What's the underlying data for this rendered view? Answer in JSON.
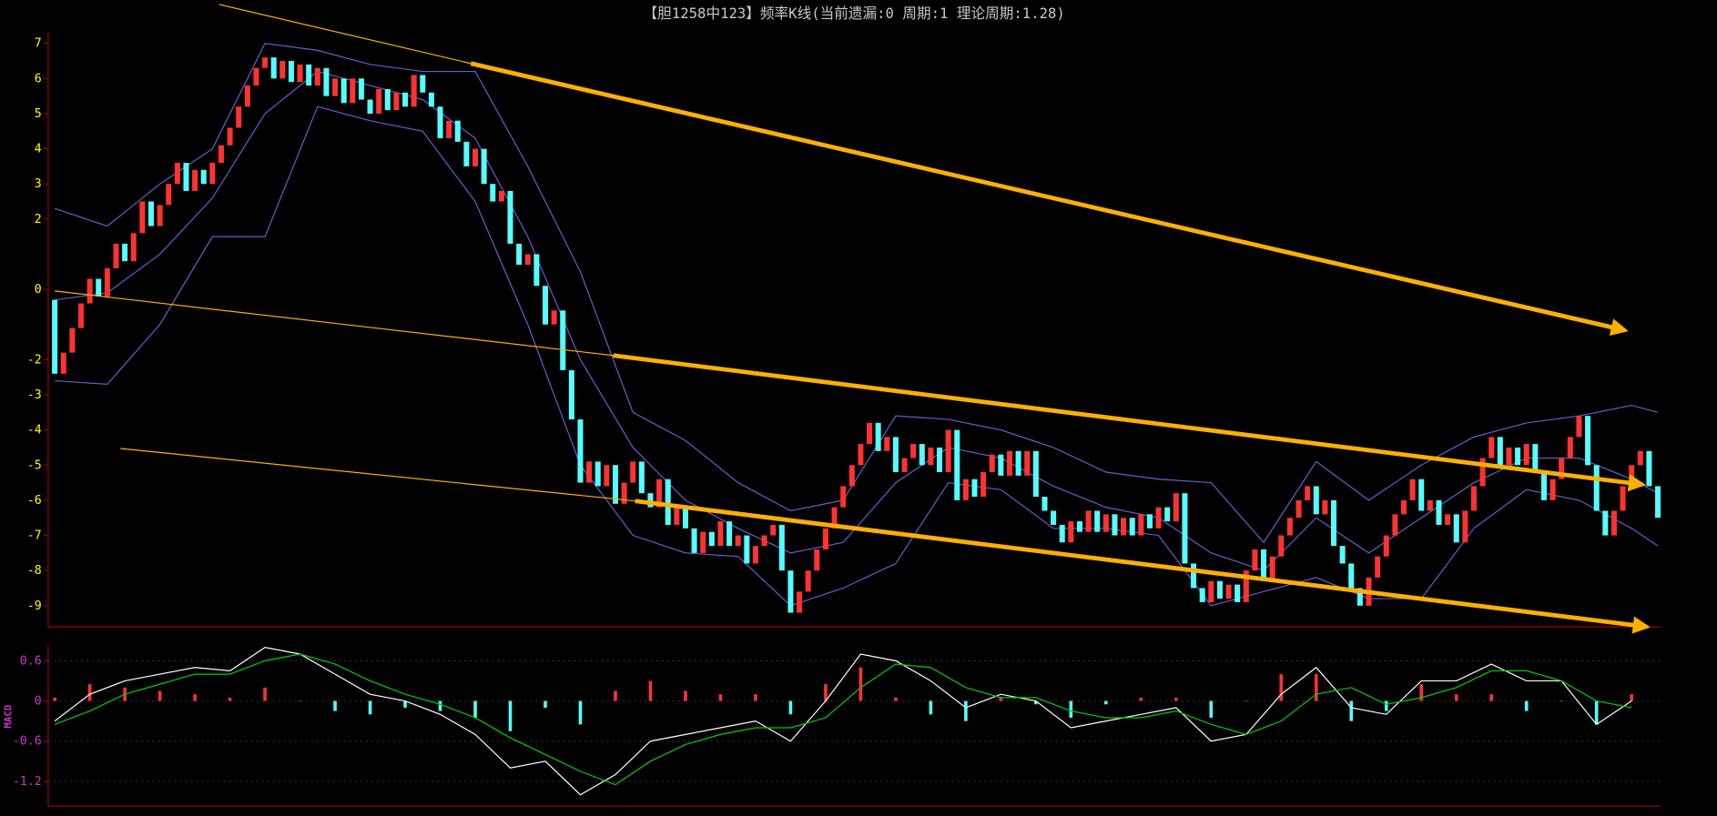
{
  "chart_data": [
    {
      "type": "candlestick",
      "title": "【胆1258中123】频率K线(当前遗漏:0 周期:1 理论周期:1.28)",
      "first_open": -0.3,
      "close": [
        -2.4,
        -1.8,
        -1.1,
        -0.4,
        0.3,
        -0.2,
        0.6,
        1.3,
        0.8,
        1.6,
        2.5,
        1.8,
        2.4,
        3.0,
        3.6,
        2.8,
        3.4,
        3.0,
        3.6,
        4.1,
        4.6,
        5.2,
        5.8,
        6.3,
        6.6,
        6.0,
        6.5,
        5.9,
        6.4,
        5.8,
        6.3,
        5.5,
        6.0,
        5.3,
        6.0,
        5.4,
        5.0,
        5.7,
        5.1,
        5.6,
        5.2,
        6.1,
        5.6,
        5.2,
        4.3,
        4.8,
        4.2,
        3.5,
        4.0,
        3.0,
        2.5,
        2.8,
        1.3,
        0.7,
        1.0,
        0.1,
        -1.0,
        -0.6,
        -2.3,
        -3.7,
        -5.5,
        -4.9,
        -5.6,
        -5.0,
        -6.1,
        -5.5,
        -4.9,
        -5.8,
        -6.2,
        -5.4,
        -6.7,
        -6.2,
        -6.8,
        -7.5,
        -6.9,
        -7.3,
        -6.6,
        -7.3,
        -7.0,
        -7.8,
        -7.3,
        -7.0,
        -6.7,
        -8.0,
        -9.2,
        -8.6,
        -8.0,
        -7.4,
        -6.8,
        -6.2,
        -5.6,
        -5.0,
        -4.4,
        -3.8,
        -4.6,
        -4.2,
        -5.2,
        -4.8,
        -4.4,
        -5.0,
        -4.5,
        -5.2,
        -4.0,
        -6.0,
        -5.4,
        -5.9,
        -5.2,
        -4.7,
        -5.3,
        -4.6,
        -5.3,
        -4.6,
        -5.9,
        -6.3,
        -6.7,
        -7.2,
        -6.6,
        -6.9,
        -6.3,
        -6.9,
        -6.4,
        -7.0,
        -6.5,
        -7.0,
        -6.4,
        -6.8,
        -6.2,
        -6.6,
        -5.8,
        -7.8,
        -8.5,
        -8.9,
        -8.3,
        -8.8,
        -8.4,
        -8.9,
        -8.0,
        -7.4,
        -8.3,
        -7.6,
        -7.0,
        -6.5,
        -6.0,
        -5.6,
        -6.4,
        -6.0,
        -7.3,
        -7.8,
        -8.5,
        -9.0,
        -8.2,
        -7.6,
        -7.0,
        -6.4,
        -6.0,
        -5.4,
        -6.3,
        -6.0,
        -6.7,
        -6.4,
        -7.2,
        -6.3,
        -5.6,
        -4.8,
        -4.2,
        -5.0,
        -4.5,
        -5.0,
        -4.4,
        -5.2,
        -6.0,
        -5.4,
        -4.8,
        -4.2,
        -3.6,
        -5.0,
        -6.3,
        -7.0,
        -6.3,
        -5.6,
        -5.0,
        -4.6,
        -5.6,
        -6.5
      ],
      "up_color": "#ff3232",
      "down_color": "#54ffff",
      "bands": {
        "color": "#6a5acd",
        "x": [
          0,
          6,
          12,
          18,
          24,
          30,
          36,
          42,
          48,
          54,
          60,
          66,
          72,
          78,
          84,
          90,
          96,
          102,
          108,
          114,
          120,
          126,
          132,
          138,
          144,
          150,
          156,
          162,
          168,
          174,
          180,
          183
        ],
        "upper": [
          2.3,
          1.8,
          3.0,
          4.0,
          7.0,
          6.8,
          6.4,
          6.2,
          6.2,
          3.5,
          0.5,
          -3.5,
          -4.3,
          -5.5,
          -6.3,
          -6.0,
          -3.6,
          -3.7,
          -4.0,
          -4.5,
          -5.2,
          -5.4,
          -5.5,
          -7.2,
          -4.9,
          -6.0,
          -5.0,
          -4.2,
          -3.8,
          -3.6,
          -3.3,
          -3.5
        ],
        "middle": [
          -0.3,
          -0.1,
          1.0,
          2.6,
          5.0,
          6.2,
          5.8,
          5.4,
          4.3,
          1.5,
          -2.0,
          -4.5,
          -6.0,
          -6.8,
          -7.5,
          -7.2,
          -5.5,
          -4.5,
          -4.8,
          -5.6,
          -6.2,
          -6.5,
          -7.5,
          -8.0,
          -6.5,
          -7.5,
          -6.5,
          -5.5,
          -4.8,
          -4.8,
          -5.4,
          -5.8
        ],
        "lower": [
          -2.6,
          -2.7,
          -1.0,
          1.5,
          1.5,
          5.2,
          4.8,
          4.5,
          2.5,
          -1.0,
          -5.0,
          -7.0,
          -7.5,
          -7.6,
          -9.0,
          -8.5,
          -7.8,
          -5.5,
          -5.7,
          -6.8,
          -6.8,
          -7.0,
          -9.0,
          -8.6,
          -8.2,
          -8.8,
          -8.8,
          -6.8,
          -5.7,
          -6.0,
          -6.8,
          -7.3
        ]
      },
      "ylim": [
        -9.6,
        7.3
      ],
      "yticks": [
        7,
        6,
        5,
        4,
        3,
        2,
        0,
        -2,
        -3,
        -4,
        -5,
        -6,
        -7,
        -8,
        -9
      ],
      "tick_color": "#ffff00"
    },
    {
      "type": "macd",
      "label": "MACD",
      "x": [
        0,
        4,
        8,
        12,
        16,
        20,
        24,
        28,
        32,
        36,
        40,
        44,
        48,
        52,
        56,
        60,
        64,
        68,
        72,
        76,
        80,
        84,
        88,
        92,
        96,
        100,
        104,
        108,
        112,
        116,
        120,
        124,
        128,
        132,
        136,
        140,
        144,
        148,
        152,
        156,
        160,
        164,
        168,
        172,
        176,
        180
      ],
      "dif": {
        "color": "#ffffff",
        "values": [
          -0.3,
          0.1,
          0.3,
          0.4,
          0.5,
          0.45,
          0.8,
          0.7,
          0.4,
          0.1,
          0.0,
          -0.2,
          -0.5,
          -1.0,
          -0.9,
          -1.4,
          -1.1,
          -0.6,
          -0.5,
          -0.4,
          -0.3,
          -0.6,
          0.0,
          0.7,
          0.6,
          0.3,
          -0.1,
          0.1,
          0.0,
          -0.4,
          -0.3,
          -0.2,
          -0.1,
          -0.6,
          -0.5,
          0.1,
          0.5,
          -0.1,
          -0.2,
          0.3,
          0.3,
          0.55,
          0.3,
          0.3,
          -0.35,
          0.0
        ]
      },
      "dea": {
        "color": "#00cc00",
        "values": [
          -0.35,
          -0.15,
          0.1,
          0.25,
          0.4,
          0.4,
          0.6,
          0.7,
          0.55,
          0.3,
          0.1,
          -0.05,
          -0.25,
          -0.55,
          -0.8,
          -1.05,
          -1.25,
          -0.9,
          -0.65,
          -0.5,
          -0.4,
          -0.4,
          -0.25,
          0.2,
          0.55,
          0.5,
          0.2,
          0.05,
          0.05,
          -0.15,
          -0.25,
          -0.25,
          -0.15,
          -0.35,
          -0.5,
          -0.3,
          0.1,
          0.2,
          -0.05,
          0.05,
          0.2,
          0.45,
          0.45,
          0.3,
          0.0,
          -0.1
        ]
      },
      "hist": {
        "values": [
          0.05,
          0.25,
          0.2,
          0.15,
          0.1,
          0.05,
          0.2,
          0.0,
          -0.15,
          -0.2,
          -0.1,
          -0.15,
          -0.25,
          -0.45,
          -0.1,
          -0.35,
          0.15,
          0.3,
          0.15,
          0.1,
          0.1,
          -0.2,
          0.25,
          0.5,
          0.05,
          -0.2,
          -0.3,
          0.05,
          -0.05,
          -0.25,
          -0.05,
          0.05,
          0.05,
          -0.25,
          0.0,
          0.4,
          0.4,
          -0.3,
          -0.15,
          0.25,
          0.1,
          0.1,
          -0.15,
          0.0,
          -0.35,
          0.1
        ]
      },
      "ylim": [
        -1.57,
        0.83
      ],
      "yticks": [
        0.6,
        0,
        -0.6,
        -1.2
      ],
      "tick_color": "#cc33cc"
    }
  ]
}
